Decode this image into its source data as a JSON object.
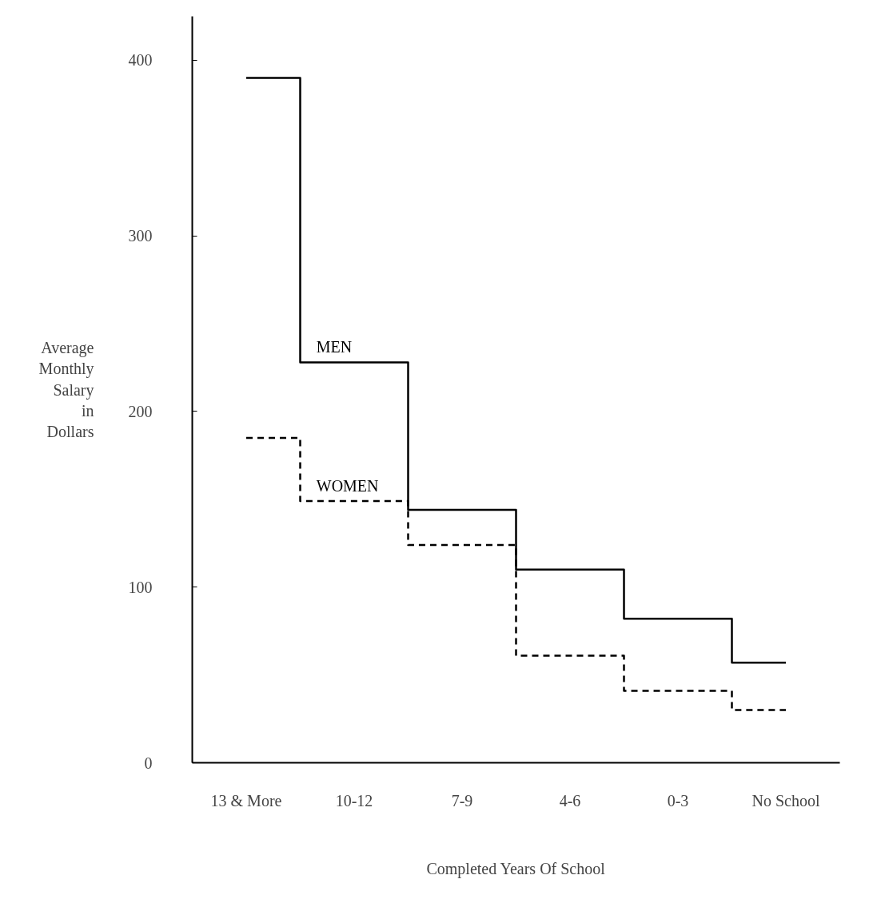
{
  "chart_data": {
    "type": "step",
    "xlabel": "Completed Years Of School",
    "ylabel": "Average\nMonthly\nSalary\nin\nDollars",
    "categories": [
      "13 & More",
      "10-12",
      "7-9",
      "4-6",
      "0-3",
      "No School"
    ],
    "series": [
      {
        "name": "MEN",
        "color": "#000000",
        "line_style": "solid",
        "values": [
          390,
          228,
          144,
          110,
          82,
          57
        ]
      },
      {
        "name": "WOMEN",
        "color": "#000000",
        "line_style": "dashed",
        "values": [
          185,
          149,
          124,
          61,
          41,
          30
        ]
      }
    ],
    "ylim": [
      0,
      425
    ],
    "yticks": [
      0,
      100,
      200,
      300,
      400
    ],
    "grid": false,
    "legend": false
  }
}
